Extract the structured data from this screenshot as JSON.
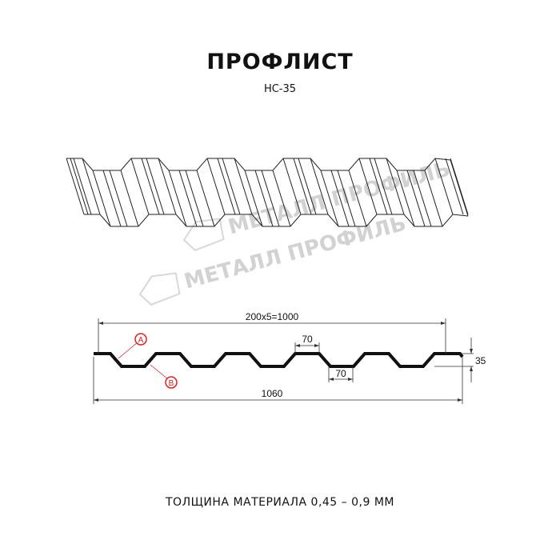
{
  "title": "ПРОФЛИСТ",
  "subtitle": "НС-35",
  "watermark": "МЕТАЛЛ ПРОФИЛЬ",
  "dimensions": {
    "pitch": "200x5=1000",
    "top_width": "70",
    "bottom_width": "70",
    "height": "35",
    "total_width": "1060"
  },
  "markers": {
    "a": "A",
    "b": "B"
  },
  "colors": {
    "profile": "#111111",
    "marker": "#e02020",
    "watermark": "#d2d2d2"
  },
  "footer": "ТОЛЩИНА МАТЕРИАЛА 0,45 – 0,9 ММ"
}
